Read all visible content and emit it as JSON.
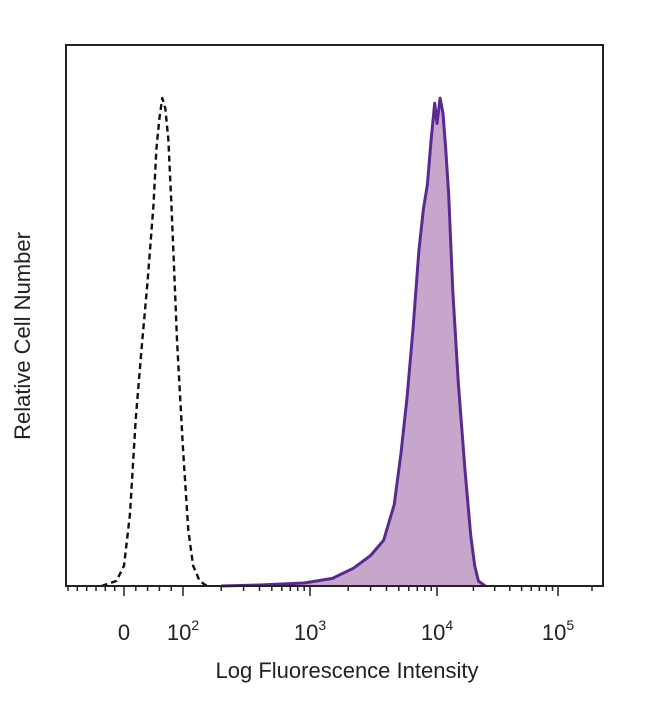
{
  "chart_data": {
    "type": "area",
    "title": "",
    "xlabel": "Log Fluorescence Intensity",
    "ylabel": "Relative Cell Number",
    "xscale": "biexponential",
    "xlim": [
      -30,
      250000
    ],
    "ylim": [
      0,
      1.0
    ],
    "grid": false,
    "legend": "none",
    "x_ticks": [
      {
        "value": 0,
        "base": "0",
        "exp": ""
      },
      {
        "value": 100,
        "base": "10",
        "exp": "2"
      },
      {
        "value": 1000,
        "base": "10",
        "exp": "3"
      },
      {
        "value": 10000,
        "base": "10",
        "exp": "4"
      },
      {
        "value": 100000,
        "base": "10",
        "exp": "5"
      }
    ],
    "series": [
      {
        "style": "dashed",
        "fill": "none",
        "color": "#111111",
        "x": [
          -12,
          -4,
          0,
          10,
          20,
          30,
          40,
          50,
          55,
          60,
          65,
          70,
          75,
          80,
          85,
          90,
          100,
          110,
          120,
          135,
          150,
          165
        ],
        "y": [
          0,
          0.01,
          0.04,
          0.14,
          0.33,
          0.47,
          0.6,
          0.75,
          0.86,
          0.92,
          0.96,
          0.94,
          0.88,
          0.76,
          0.62,
          0.48,
          0.27,
          0.11,
          0.04,
          0.01,
          0.002,
          0
        ]
      },
      {
        "style": "solid",
        "fill": "#c7a6cc",
        "color": "#5b2a91",
        "x": [
          200,
          400,
          900,
          1500,
          2200,
          3000,
          3800,
          4600,
          5200,
          5800,
          6500,
          7200,
          7800,
          8400,
          9000,
          9600,
          10000,
          10600,
          11200,
          11800,
          12500,
          13500,
          15000,
          17000,
          19000,
          20500,
          22000,
          25000
        ],
        "y": [
          0,
          0.002,
          0.006,
          0.015,
          0.035,
          0.06,
          0.09,
          0.16,
          0.26,
          0.37,
          0.51,
          0.66,
          0.74,
          0.79,
          0.88,
          0.95,
          0.91,
          0.96,
          0.93,
          0.86,
          0.77,
          0.58,
          0.4,
          0.23,
          0.1,
          0.04,
          0.01,
          0
        ]
      }
    ]
  }
}
